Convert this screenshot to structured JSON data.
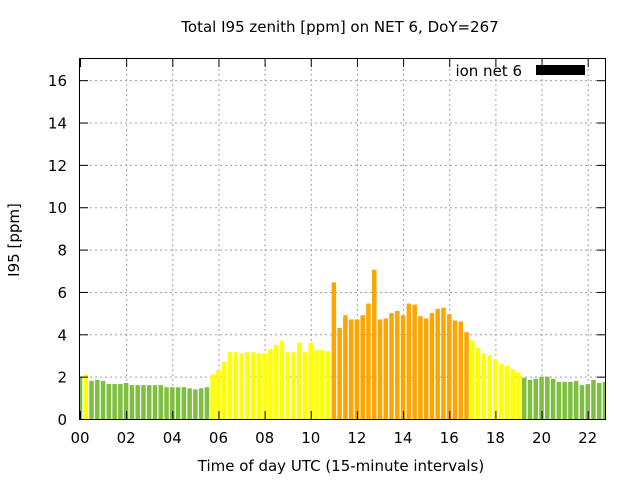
{
  "chart_data": {
    "type": "bar",
    "title": "Total I95 zenith [ppm] on NET 6, DoY=267",
    "xlabel": "Time of day UTC (15-minute intervals)",
    "ylabel": "I95 [ppm]",
    "xlim": [
      0,
      22.75
    ],
    "ylim": [
      0,
      17
    ],
    "x_ticks": [
      "00",
      "02",
      "04",
      "06",
      "08",
      "10",
      "12",
      "14",
      "16",
      "18",
      "20",
      "22"
    ],
    "y_ticks": [
      "0",
      "2",
      "4",
      "6",
      "8",
      "10",
      "12",
      "14",
      "16"
    ],
    "grid": true,
    "legend": {
      "label": "ion net 6",
      "color": "#000000",
      "position": "top-right"
    },
    "colors": {
      "low": "#7fbf3f",
      "mid": "#ffff00",
      "high": "#ffa500"
    },
    "bars": [
      {
        "t": 0.0,
        "v": 2.0,
        "level": "low"
      },
      {
        "t": 0.25,
        "v": 2.1,
        "level": "mid"
      },
      {
        "t": 0.5,
        "v": 1.8,
        "level": "low"
      },
      {
        "t": 0.75,
        "v": 1.85,
        "level": "low"
      },
      {
        "t": 1.0,
        "v": 1.8,
        "level": "low"
      },
      {
        "t": 1.25,
        "v": 1.65,
        "level": "low"
      },
      {
        "t": 1.5,
        "v": 1.65,
        "level": "low"
      },
      {
        "t": 1.75,
        "v": 1.65,
        "level": "low"
      },
      {
        "t": 2.0,
        "v": 1.7,
        "level": "low"
      },
      {
        "t": 2.25,
        "v": 1.6,
        "level": "low"
      },
      {
        "t": 2.5,
        "v": 1.6,
        "level": "low"
      },
      {
        "t": 2.75,
        "v": 1.6,
        "level": "low"
      },
      {
        "t": 3.0,
        "v": 1.6,
        "level": "low"
      },
      {
        "t": 3.25,
        "v": 1.6,
        "level": "low"
      },
      {
        "t": 3.5,
        "v": 1.6,
        "level": "low"
      },
      {
        "t": 3.75,
        "v": 1.5,
        "level": "low"
      },
      {
        "t": 4.0,
        "v": 1.5,
        "level": "low"
      },
      {
        "t": 4.25,
        "v": 1.5,
        "level": "low"
      },
      {
        "t": 4.5,
        "v": 1.5,
        "level": "low"
      },
      {
        "t": 4.75,
        "v": 1.45,
        "level": "low"
      },
      {
        "t": 5.0,
        "v": 1.4,
        "level": "low"
      },
      {
        "t": 5.25,
        "v": 1.45,
        "level": "low"
      },
      {
        "t": 5.5,
        "v": 1.5,
        "level": "low"
      },
      {
        "t": 5.75,
        "v": 2.1,
        "level": "mid"
      },
      {
        "t": 6.0,
        "v": 2.3,
        "level": "mid"
      },
      {
        "t": 6.25,
        "v": 2.7,
        "level": "mid"
      },
      {
        "t": 6.5,
        "v": 3.15,
        "level": "mid"
      },
      {
        "t": 6.75,
        "v": 3.15,
        "level": "mid"
      },
      {
        "t": 7.0,
        "v": 3.1,
        "level": "mid"
      },
      {
        "t": 7.25,
        "v": 3.15,
        "level": "mid"
      },
      {
        "t": 7.5,
        "v": 3.15,
        "level": "mid"
      },
      {
        "t": 7.75,
        "v": 3.1,
        "level": "mid"
      },
      {
        "t": 8.0,
        "v": 3.1,
        "level": "mid"
      },
      {
        "t": 8.25,
        "v": 3.3,
        "level": "mid"
      },
      {
        "t": 8.5,
        "v": 3.5,
        "level": "mid"
      },
      {
        "t": 8.75,
        "v": 3.7,
        "level": "mid"
      },
      {
        "t": 9.0,
        "v": 3.15,
        "level": "mid"
      },
      {
        "t": 9.25,
        "v": 3.15,
        "level": "mid"
      },
      {
        "t": 9.5,
        "v": 3.6,
        "level": "mid"
      },
      {
        "t": 9.75,
        "v": 3.15,
        "level": "mid"
      },
      {
        "t": 10.0,
        "v": 3.6,
        "level": "mid"
      },
      {
        "t": 10.25,
        "v": 3.25,
        "level": "mid"
      },
      {
        "t": 10.5,
        "v": 3.25,
        "level": "mid"
      },
      {
        "t": 10.75,
        "v": 3.2,
        "level": "mid"
      },
      {
        "t": 11.0,
        "v": 6.45,
        "level": "high"
      },
      {
        "t": 11.25,
        "v": 4.3,
        "level": "high"
      },
      {
        "t": 11.5,
        "v": 4.9,
        "level": "high"
      },
      {
        "t": 11.75,
        "v": 4.7,
        "level": "high"
      },
      {
        "t": 12.0,
        "v": 4.7,
        "level": "high"
      },
      {
        "t": 12.25,
        "v": 4.9,
        "level": "high"
      },
      {
        "t": 12.5,
        "v": 5.45,
        "level": "high"
      },
      {
        "t": 12.75,
        "v": 7.05,
        "level": "high"
      },
      {
        "t": 13.0,
        "v": 4.7,
        "level": "high"
      },
      {
        "t": 13.25,
        "v": 4.75,
        "level": "high"
      },
      {
        "t": 13.5,
        "v": 5.0,
        "level": "high"
      },
      {
        "t": 13.75,
        "v": 5.1,
        "level": "high"
      },
      {
        "t": 14.0,
        "v": 4.9,
        "level": "high"
      },
      {
        "t": 14.25,
        "v": 5.45,
        "level": "high"
      },
      {
        "t": 14.5,
        "v": 5.4,
        "level": "high"
      },
      {
        "t": 14.75,
        "v": 4.85,
        "level": "high"
      },
      {
        "t": 15.0,
        "v": 4.75,
        "level": "high"
      },
      {
        "t": 15.25,
        "v": 5.0,
        "level": "high"
      },
      {
        "t": 15.5,
        "v": 5.2,
        "level": "high"
      },
      {
        "t": 15.75,
        "v": 5.25,
        "level": "high"
      },
      {
        "t": 16.0,
        "v": 4.95,
        "level": "high"
      },
      {
        "t": 16.25,
        "v": 4.65,
        "level": "high"
      },
      {
        "t": 16.5,
        "v": 4.6,
        "level": "high"
      },
      {
        "t": 16.75,
        "v": 4.1,
        "level": "high"
      },
      {
        "t": 17.0,
        "v": 3.7,
        "level": "mid"
      },
      {
        "t": 17.25,
        "v": 3.35,
        "level": "mid"
      },
      {
        "t": 17.5,
        "v": 3.1,
        "level": "mid"
      },
      {
        "t": 17.75,
        "v": 3.0,
        "level": "mid"
      },
      {
        "t": 18.0,
        "v": 2.8,
        "level": "mid"
      },
      {
        "t": 18.25,
        "v": 2.6,
        "level": "mid"
      },
      {
        "t": 18.5,
        "v": 2.5,
        "level": "mid"
      },
      {
        "t": 18.75,
        "v": 2.35,
        "level": "mid"
      },
      {
        "t": 19.0,
        "v": 2.2,
        "level": "mid"
      },
      {
        "t": 19.25,
        "v": 1.95,
        "level": "low"
      },
      {
        "t": 19.5,
        "v": 1.85,
        "level": "low"
      },
      {
        "t": 19.75,
        "v": 1.9,
        "level": "low"
      },
      {
        "t": 20.0,
        "v": 2.0,
        "level": "low"
      },
      {
        "t": 20.25,
        "v": 2.0,
        "level": "low"
      },
      {
        "t": 20.5,
        "v": 1.9,
        "level": "low"
      },
      {
        "t": 20.75,
        "v": 1.75,
        "level": "low"
      },
      {
        "t": 21.0,
        "v": 1.75,
        "level": "low"
      },
      {
        "t": 21.25,
        "v": 1.75,
        "level": "low"
      },
      {
        "t": 21.5,
        "v": 1.8,
        "level": "low"
      },
      {
        "t": 21.75,
        "v": 1.6,
        "level": "low"
      },
      {
        "t": 22.0,
        "v": 1.65,
        "level": "low"
      },
      {
        "t": 22.25,
        "v": 1.85,
        "level": "low"
      },
      {
        "t": 22.5,
        "v": 1.7,
        "level": "low"
      },
      {
        "t": 22.75,
        "v": 1.75,
        "level": "low"
      }
    ]
  }
}
